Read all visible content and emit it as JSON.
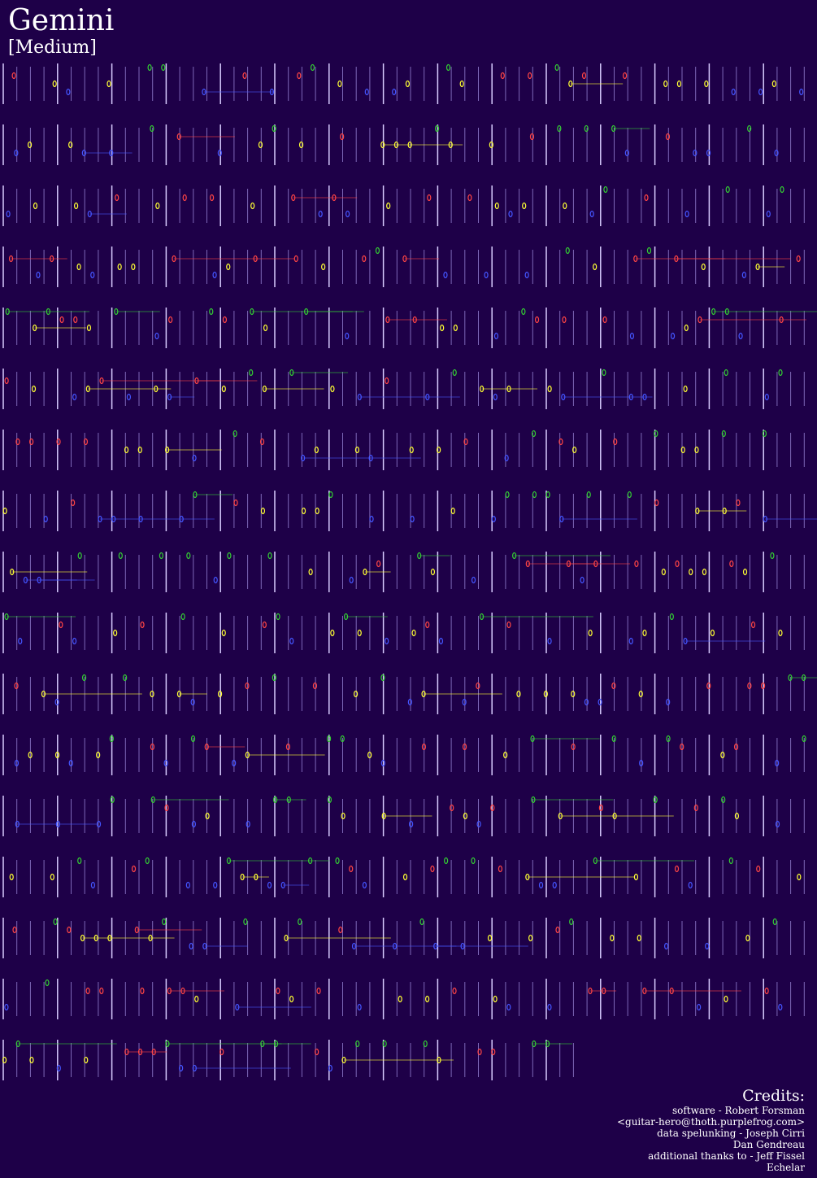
{
  "header": {
    "title": "Gemini",
    "subtitle": "[Medium]"
  },
  "credits": {
    "heading": "Credits:",
    "lines": [
      "software - Robert Forsman",
      "<guitar-hero@thoth.purplefrog.com>",
      "data spelunking - Joseph Cirri",
      "Dan Gendreau",
      "additional thanks to - Jeff Fissel",
      "Echelar"
    ]
  }
}
